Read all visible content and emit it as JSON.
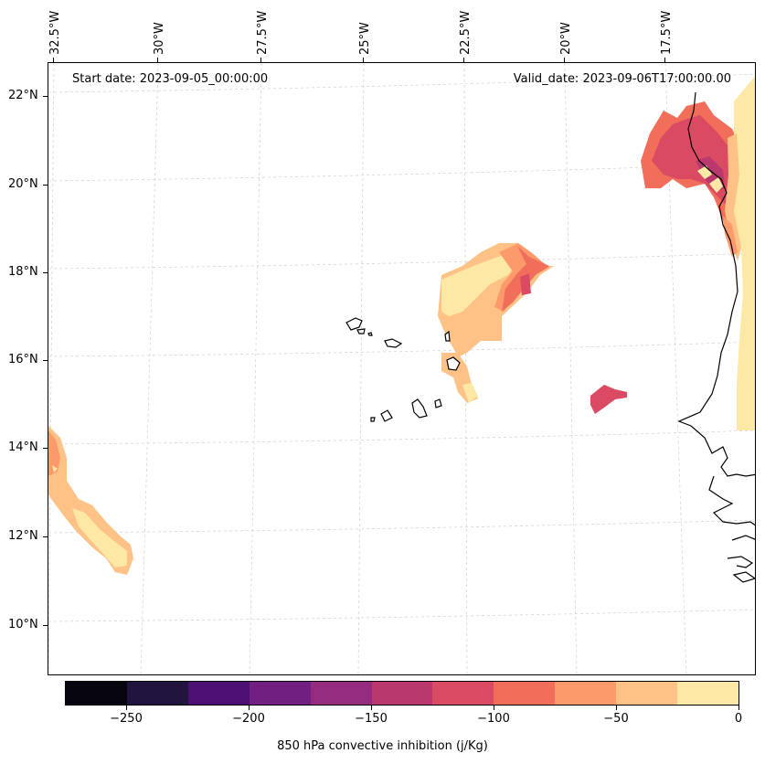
{
  "map": {
    "start_date": "Start date: 2023-09-05_00:00:00",
    "valid_date": "Valid_date: 2023-09-06T17:00:00.00",
    "lat_labels": [
      "22°N",
      "20°N",
      "18°N",
      "16°N",
      "14°N",
      "12°N",
      "10°N"
    ],
    "lon_labels": [
      "32.5°W",
      "30°W",
      "27.5°W",
      "25°W",
      "22.5°W",
      "20°W",
      "17.5°W"
    ]
  },
  "colorbar": {
    "title": "850 hPa convective inhibition (j/Kg)",
    "tick_labels": [
      "−250",
      "−200",
      "−150",
      "−100",
      "−50",
      "0"
    ],
    "levels": [
      -275,
      -250,
      -225,
      -200,
      -175,
      -150,
      -125,
      -100,
      -75,
      -50,
      -25,
      0
    ],
    "colors": [
      "#05040f",
      "#211540",
      "#4c0f73",
      "#711f81",
      "#952c80",
      "#b9386e",
      "#da4a63",
      "#f16e5b",
      "#fc9a6b",
      "#fec287",
      "#fde8a5"
    ]
  }
}
